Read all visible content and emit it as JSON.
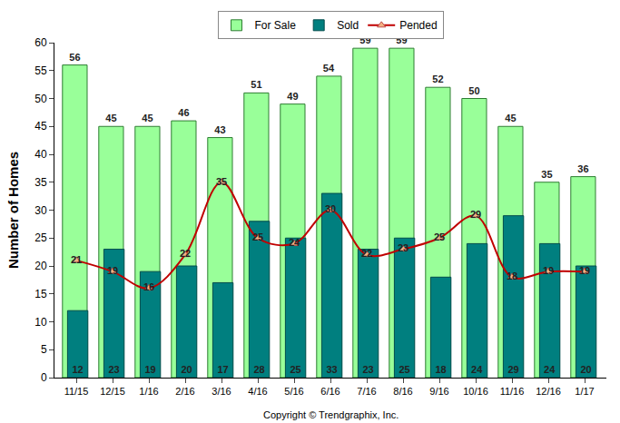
{
  "chart_data": {
    "type": "bar",
    "categories": [
      "11/15",
      "12/15",
      "1/16",
      "2/16",
      "3/16",
      "4/16",
      "5/16",
      "6/16",
      "7/16",
      "8/16",
      "9/16",
      "10/16",
      "11/16",
      "12/16",
      "1/17"
    ],
    "series": [
      {
        "name": "For Sale",
        "type": "bar",
        "color": "#99ff99",
        "values": [
          56,
          45,
          45,
          46,
          43,
          51,
          49,
          54,
          59,
          59,
          52,
          50,
          45,
          35,
          36
        ]
      },
      {
        "name": "Sold",
        "type": "bar",
        "color": "#007f7f",
        "values": [
          12,
          23,
          19,
          20,
          17,
          28,
          25,
          33,
          23,
          25,
          18,
          24,
          29,
          24,
          20
        ]
      },
      {
        "name": "Pended",
        "type": "line",
        "color": "#c00000",
        "marker": "triangle-up",
        "line_style": "spline",
        "values": [
          21,
          19,
          16,
          22,
          35,
          25,
          24,
          30,
          22,
          23,
          25,
          29,
          18,
          19,
          19
        ]
      }
    ],
    "y_label": "Number of Homes",
    "annotations": [
      "Copyright © Trendgraphix, Inc."
    ],
    "ylim": [
      0,
      60
    ],
    "yticks": [
      0,
      5,
      10,
      15,
      20,
      25,
      30,
      35,
      40,
      45,
      50,
      55,
      60
    ],
    "grid": false,
    "legend": "top",
    "data_labels": true,
    "stacked": false
  }
}
